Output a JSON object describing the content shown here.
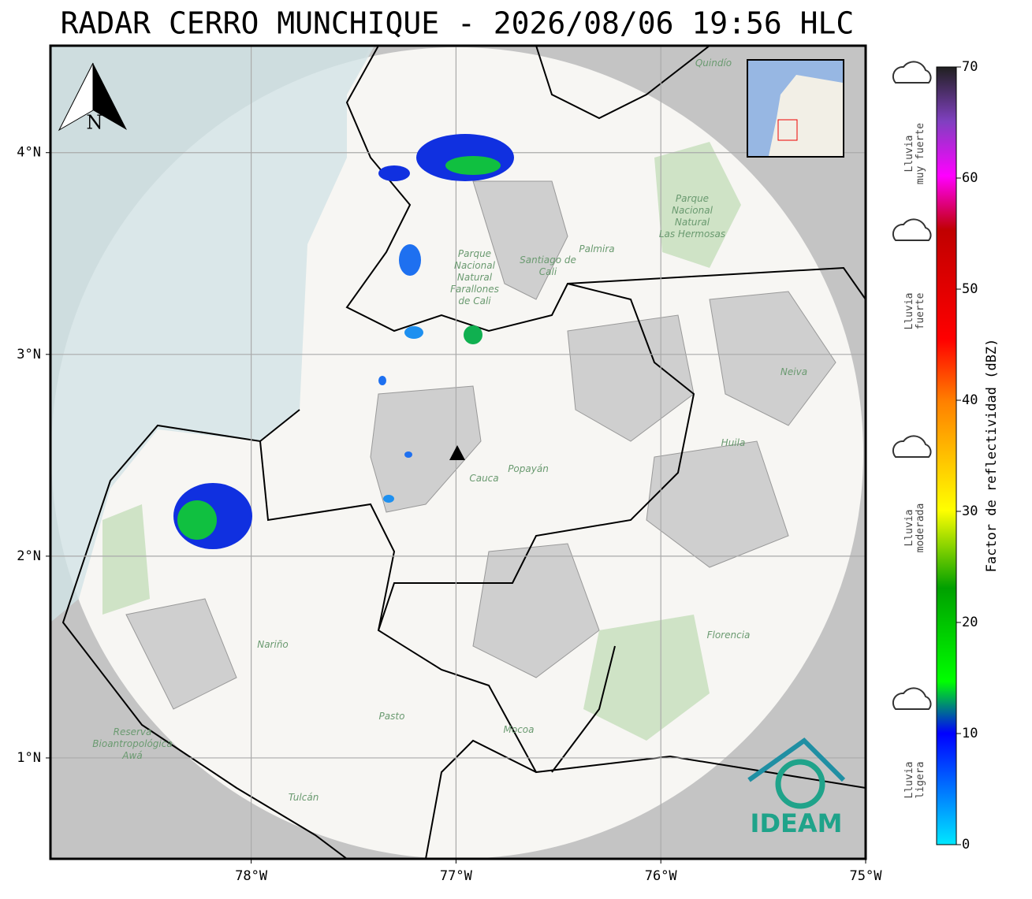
{
  "title": "RADAR CERRO MUNCHIQUE - 2026/08/06 19:56 HLC",
  "map": {
    "xlim": [
      -78.98,
      -75
    ],
    "ylim": [
      0.5,
      4.53
    ],
    "xticks": [
      {
        "value": -78,
        "label": "78°W"
      },
      {
        "value": -77,
        "label": "77°W"
      },
      {
        "value": -76,
        "label": "76°W"
      },
      {
        "value": -75,
        "label": "75°W"
      }
    ],
    "yticks": [
      {
        "value": 1,
        "label": "1°N"
      },
      {
        "value": 2,
        "label": "2°N"
      },
      {
        "value": 3,
        "label": "3°N"
      },
      {
        "value": 4,
        "label": "4°N"
      }
    ],
    "north": "N",
    "places": [
      {
        "lines": [
          "Quindío"
        ]
      },
      {
        "lines": [
          "Parque",
          "Nacional",
          "Natural",
          "Las Hermosas"
        ]
      },
      {
        "lines": [
          "Parque",
          "Nacional",
          "Natural",
          "Farallones",
          "de Cali"
        ]
      },
      {
        "lines": [
          "Santiago de",
          "Cali"
        ]
      },
      {
        "lines": [
          "Palmira"
        ]
      },
      {
        "lines": [
          "Neiva"
        ]
      },
      {
        "lines": [
          "Huila"
        ]
      },
      {
        "lines": [
          "Cauca"
        ]
      },
      {
        "lines": [
          "Popayán"
        ]
      },
      {
        "lines": [
          "Nariño"
        ]
      },
      {
        "lines": [
          "Pasto"
        ]
      },
      {
        "lines": [
          "Mocoa"
        ]
      },
      {
        "lines": [
          "Florencia"
        ]
      },
      {
        "lines": [
          "Reserva",
          "Bioantropológica",
          "Awá"
        ]
      },
      {
        "lines": [
          "Tulcán"
        ]
      }
    ],
    "logo": "IDEAM"
  },
  "colorbar": {
    "label": "Factor de reflectividad (dBZ)",
    "lim": [
      0,
      70
    ],
    "ticks": [
      0,
      10,
      20,
      30,
      40,
      50,
      60,
      70
    ]
  },
  "rain_legend": [
    {
      "lines": [
        "Lluvia",
        "muy fuerte"
      ]
    },
    {
      "lines": [
        "Lluvia",
        "fuerte"
      ]
    },
    {
      "lines": [
        "Lluvia",
        "moderada"
      ]
    },
    {
      "lines": [
        "Lluvia",
        "ligera"
      ]
    }
  ]
}
